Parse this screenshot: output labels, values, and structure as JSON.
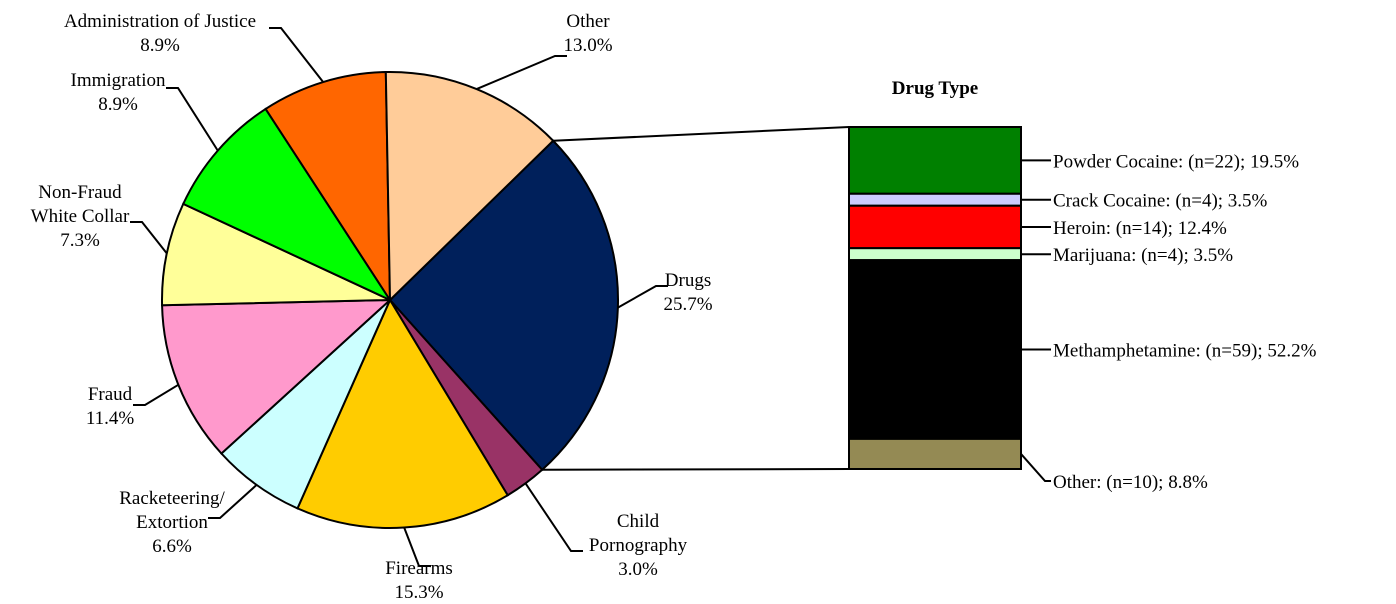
{
  "chart_data": [
    {
      "type": "pie",
      "title": "",
      "slices": [
        {
          "label": "Drugs",
          "label_lines": [
            "Drugs"
          ],
          "value": 25.7,
          "value_text": "25.7%",
          "color": "#00205b"
        },
        {
          "label": "Child Pornography",
          "label_lines": [
            "Child",
            "Pornography"
          ],
          "value": 3.0,
          "value_text": "3.0%",
          "color": "#993366"
        },
        {
          "label": "Firearms",
          "label_lines": [
            "Firearms"
          ],
          "value": 15.3,
          "value_text": "15.3%",
          "color": "#ffcc00"
        },
        {
          "label": "Racketeering/ Extortion",
          "label_lines": [
            "Racketeering/",
            "Extortion"
          ],
          "value": 6.6,
          "value_text": "6.6%",
          "color": "#ccffff"
        },
        {
          "label": "Fraud",
          "label_lines": [
            "Fraud"
          ],
          "value": 11.4,
          "value_text": "11.4%",
          "color": "#ff99cc"
        },
        {
          "label": "Non-Fraud White Collar",
          "label_lines": [
            "Non-Fraud",
            "White Collar"
          ],
          "value": 7.3,
          "value_text": "7.3%",
          "color": "#ffff99"
        },
        {
          "label": "Immigration",
          "label_lines": [
            "Immigration"
          ],
          "value": 8.9,
          "value_text": "8.9%",
          "color": "#00ff00"
        },
        {
          "label": "Administration of Justice",
          "label_lines": [
            "Administration of Justice"
          ],
          "value": 8.9,
          "value_text": "8.9%",
          "color": "#ff6600"
        },
        {
          "label": "Other",
          "label_lines": [
            "Other"
          ],
          "value": 13.0,
          "value_text": "13.0%",
          "color": "#ffcc99"
        }
      ]
    },
    {
      "type": "bar",
      "stacked": true,
      "title": "Drug Type",
      "segments": [
        {
          "label": "Powder Cocaine:  (n=22); 19.5%",
          "name": "Powder Cocaine",
          "n": 22,
          "value": 19.5,
          "color": "#008000"
        },
        {
          "label": "Crack Cocaine:  (n=4); 3.5%",
          "name": "Crack Cocaine",
          "n": 4,
          "value": 3.5,
          "color": "#ccccff"
        },
        {
          "label": "Heroin:  (n=14); 12.4%",
          "name": "Heroin",
          "n": 14,
          "value": 12.4,
          "color": "#ff0000"
        },
        {
          "label": "Marijuana:  (n=4); 3.5%",
          "name": "Marijuana",
          "n": 4,
          "value": 3.5,
          "color": "#ccffcc"
        },
        {
          "label": "Methamphetamine:  (n=59); 52.2%",
          "name": "Methamphetamine",
          "n": 59,
          "value": 52.2,
          "color": "#000000"
        },
        {
          "label": "Other:  (n=10); 8.8%",
          "name": "Other",
          "n": 10,
          "value": 8.8,
          "color": "#948a54"
        }
      ]
    }
  ]
}
